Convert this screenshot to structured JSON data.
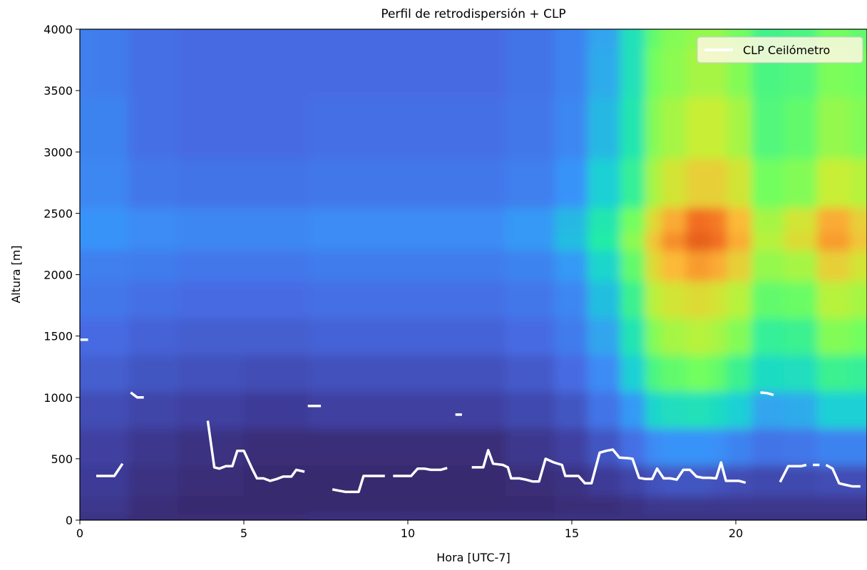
{
  "chart_data": {
    "type": "heatmap",
    "title": "Perfil de retrodispersión + CLP",
    "xlabel": "Hora [UTC-7]",
    "ylabel": "Altura [m]",
    "xlim": [
      0,
      24
    ],
    "ylim": [
      0,
      4000
    ],
    "xticks": [
      0,
      5,
      10,
      15,
      20
    ],
    "xtick_labels": [
      "0",
      "5",
      "10",
      "15",
      "20"
    ],
    "yticks": [
      0,
      500,
      1000,
      1500,
      2000,
      2500,
      3000,
      3500,
      4000
    ],
    "ytick_labels": [
      "0",
      "500",
      "1000",
      "1500",
      "2000",
      "2500",
      "3000",
      "3500",
      "4000"
    ],
    "legend": {
      "position": "top-right",
      "entries": [
        {
          "label": "CLP Ceilómetro",
          "color": "#ffffff"
        }
      ]
    },
    "colormap": "turbo",
    "heatmap_description_levels": {
      "x": [
        0,
        1,
        2,
        4,
        6,
        8,
        10,
        12,
        14,
        15,
        16,
        17,
        17.5,
        18,
        19,
        19.5,
        20,
        21,
        22,
        23,
        24
      ],
      "y": [
        0,
        100,
        300,
        600,
        900,
        1200,
        1500,
        1800,
        2100,
        2300,
        2400,
        2700,
        3200,
        3700,
        4000
      ],
      "values": [
        [
          0.07,
          0.08,
          0.09,
          0.1,
          0.13,
          0.17,
          0.2,
          0.23,
          0.25,
          0.3,
          0.3,
          0.27,
          0.26,
          0.25,
          0.25
        ],
        [
          0.07,
          0.08,
          0.09,
          0.1,
          0.13,
          0.17,
          0.2,
          0.23,
          0.25,
          0.3,
          0.3,
          0.27,
          0.26,
          0.24,
          0.24
        ],
        [
          0.06,
          0.06,
          0.07,
          0.08,
          0.11,
          0.15,
          0.18,
          0.21,
          0.24,
          0.28,
          0.28,
          0.23,
          0.21,
          0.21,
          0.21
        ],
        [
          0.06,
          0.05,
          0.06,
          0.07,
          0.1,
          0.14,
          0.17,
          0.2,
          0.23,
          0.27,
          0.27,
          0.22,
          0.2,
          0.2,
          0.2
        ],
        [
          0.06,
          0.05,
          0.05,
          0.06,
          0.09,
          0.13,
          0.17,
          0.2,
          0.23,
          0.27,
          0.27,
          0.22,
          0.2,
          0.2,
          0.2
        ],
        [
          0.07,
          0.05,
          0.05,
          0.06,
          0.1,
          0.14,
          0.18,
          0.21,
          0.24,
          0.28,
          0.28,
          0.23,
          0.21,
          0.2,
          0.2
        ],
        [
          0.07,
          0.05,
          0.05,
          0.06,
          0.1,
          0.14,
          0.18,
          0.21,
          0.24,
          0.28,
          0.28,
          0.23,
          0.21,
          0.2,
          0.2
        ],
        [
          0.07,
          0.05,
          0.05,
          0.06,
          0.1,
          0.14,
          0.18,
          0.21,
          0.24,
          0.28,
          0.28,
          0.23,
          0.21,
          0.2,
          0.2
        ],
        [
          0.07,
          0.05,
          0.06,
          0.08,
          0.12,
          0.16,
          0.2,
          0.23,
          0.26,
          0.31,
          0.31,
          0.25,
          0.23,
          0.22,
          0.22
        ],
        [
          0.07,
          0.06,
          0.07,
          0.1,
          0.15,
          0.2,
          0.24,
          0.27,
          0.31,
          0.37,
          0.36,
          0.3,
          0.27,
          0.26,
          0.26
        ],
        [
          0.07,
          0.06,
          0.09,
          0.15,
          0.22,
          0.28,
          0.33,
          0.37,
          0.42,
          0.5,
          0.48,
          0.4,
          0.36,
          0.34,
          0.33
        ],
        [
          0.07,
          0.07,
          0.11,
          0.21,
          0.31,
          0.4,
          0.47,
          0.53,
          0.58,
          0.63,
          0.6,
          0.52,
          0.48,
          0.46,
          0.46
        ],
        [
          0.07,
          0.08,
          0.14,
          0.28,
          0.42,
          0.55,
          0.62,
          0.68,
          0.74,
          0.78,
          0.74,
          0.66,
          0.62,
          0.6,
          0.58
        ],
        [
          0.07,
          0.08,
          0.15,
          0.3,
          0.45,
          0.58,
          0.66,
          0.72,
          0.8,
          0.86,
          0.82,
          0.72,
          0.66,
          0.63,
          0.62
        ],
        [
          0.07,
          0.08,
          0.15,
          0.3,
          0.46,
          0.6,
          0.68,
          0.74,
          0.84,
          0.92,
          0.9,
          0.76,
          0.7,
          0.66,
          0.64
        ],
        [
          0.07,
          0.08,
          0.14,
          0.29,
          0.44,
          0.58,
          0.66,
          0.72,
          0.82,
          0.9,
          0.88,
          0.76,
          0.7,
          0.66,
          0.64
        ],
        [
          0.07,
          0.08,
          0.13,
          0.26,
          0.4,
          0.53,
          0.62,
          0.68,
          0.76,
          0.82,
          0.8,
          0.72,
          0.66,
          0.62,
          0.6
        ],
        [
          0.07,
          0.08,
          0.12,
          0.22,
          0.33,
          0.44,
          0.52,
          0.58,
          0.64,
          0.68,
          0.66,
          0.6,
          0.56,
          0.55,
          0.54
        ],
        [
          0.07,
          0.08,
          0.12,
          0.23,
          0.34,
          0.45,
          0.53,
          0.59,
          0.66,
          0.74,
          0.72,
          0.62,
          0.58,
          0.56,
          0.55
        ],
        [
          0.07,
          0.08,
          0.13,
          0.26,
          0.4,
          0.53,
          0.62,
          0.68,
          0.76,
          0.84,
          0.82,
          0.7,
          0.64,
          0.61,
          0.6
        ],
        [
          0.07,
          0.08,
          0.13,
          0.26,
          0.4,
          0.52,
          0.6,
          0.66,
          0.72,
          0.78,
          0.76,
          0.68,
          0.62,
          0.6,
          0.58
        ]
      ]
    },
    "series": [
      {
        "name": "CLP Ceilómetro",
        "color": "#ffffff",
        "segments": [
          [
            [
              0,
              1470
            ],
            [
              0.25,
              1470
            ]
          ],
          [
            [
              0.5,
              360
            ],
            [
              1.05,
              360
            ],
            [
              1.3,
              460
            ]
          ],
          [
            [
              1.55,
              1040
            ],
            [
              1.75,
              1000
            ],
            [
              1.95,
              1000
            ]
          ],
          [
            [
              3.9,
              810
            ],
            [
              4.1,
              430
            ],
            [
              4.25,
              420
            ],
            [
              4.45,
              440
            ],
            [
              4.65,
              440
            ],
            [
              4.8,
              565
            ],
            [
              5.0,
              565
            ],
            [
              5.25,
              420
            ],
            [
              5.4,
              340
            ],
            [
              5.6,
              340
            ],
            [
              5.8,
              320
            ],
            [
              6.0,
              335
            ],
            [
              6.2,
              355
            ],
            [
              6.45,
              355
            ],
            [
              6.6,
              410
            ],
            [
              6.85,
              395
            ]
          ],
          [
            [
              6.95,
              930
            ],
            [
              7.35,
              930
            ]
          ],
          [
            [
              7.7,
              250
            ],
            [
              7.9,
              240
            ],
            [
              8.1,
              230
            ],
            [
              8.5,
              230
            ],
            [
              8.65,
              360
            ],
            [
              9.0,
              360
            ],
            [
              9.3,
              360
            ]
          ],
          [
            [
              9.55,
              360
            ],
            [
              10.1,
              360
            ],
            [
              10.3,
              420
            ],
            [
              10.5,
              420
            ],
            [
              10.7,
              410
            ],
            [
              11.0,
              410
            ],
            [
              11.2,
              425
            ]
          ],
          [
            [
              11.45,
              860
            ],
            [
              11.65,
              860
            ]
          ],
          [
            [
              11.95,
              430
            ],
            [
              12.3,
              430
            ],
            [
              12.45,
              570
            ],
            [
              12.6,
              460
            ],
            [
              12.9,
              450
            ],
            [
              13.05,
              430
            ],
            [
              13.15,
              340
            ],
            [
              13.4,
              340
            ],
            [
              13.6,
              330
            ],
            [
              13.8,
              315
            ],
            [
              14.0,
              315
            ],
            [
              14.2,
              500
            ],
            [
              14.45,
              470
            ],
            [
              14.7,
              450
            ],
            [
              14.8,
              360
            ],
            [
              15.0,
              360
            ],
            [
              15.2,
              360
            ],
            [
              15.4,
              300
            ],
            [
              15.6,
              300
            ],
            [
              15.85,
              550
            ],
            [
              16.05,
              565
            ],
            [
              16.25,
              575
            ],
            [
              16.45,
              510
            ],
            [
              16.7,
              505
            ],
            [
              16.85,
              500
            ],
            [
              17.05,
              345
            ],
            [
              17.25,
              335
            ],
            [
              17.45,
              335
            ],
            [
              17.6,
              420
            ],
            [
              17.8,
              340
            ],
            [
              18.0,
              340
            ],
            [
              18.2,
              330
            ],
            [
              18.4,
              410
            ],
            [
              18.6,
              410
            ],
            [
              18.8,
              355
            ],
            [
              19.0,
              345
            ],
            [
              19.2,
              345
            ],
            [
              19.4,
              340
            ],
            [
              19.55,
              470
            ],
            [
              19.7,
              320
            ],
            [
              19.9,
              320
            ],
            [
              20.1,
              320
            ],
            [
              20.3,
              305
            ]
          ],
          [
            [
              20.75,
              1040
            ],
            [
              20.95,
              1035
            ],
            [
              21.15,
              1020
            ]
          ],
          [
            [
              21.35,
              310
            ],
            [
              21.6,
              440
            ],
            [
              21.8,
              440
            ],
            [
              22.0,
              440
            ],
            [
              22.15,
              450
            ]
          ],
          [
            [
              22.35,
              450
            ],
            [
              22.55,
              450
            ]
          ],
          [
            [
              22.75,
              450
            ],
            [
              22.95,
              420
            ],
            [
              23.15,
              300
            ],
            [
              23.3,
              290
            ],
            [
              23.55,
              275
            ],
            [
              23.8,
              275
            ]
          ]
        ]
      }
    ]
  }
}
